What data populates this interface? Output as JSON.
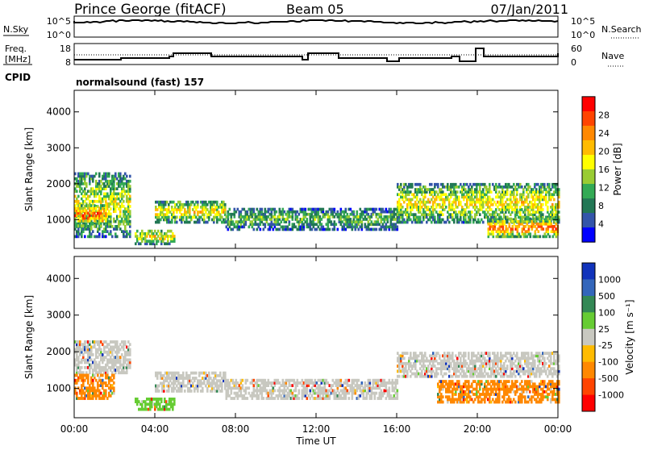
{
  "header": {
    "station": "Prince George (fitACF)",
    "beam": "Beam 05",
    "date": "07/Jan/2011"
  },
  "top_panels": {
    "nsky_label": "N.Sky",
    "nsky_ticks": [
      "10^5",
      "10^0"
    ],
    "nsearch_label": "N.Search",
    "nsearch_ticks": [
      "10^5",
      "10^0"
    ],
    "freq_label": "Freq.",
    "freq_unit": "[MHz]",
    "freq_ticks": [
      "18",
      "8"
    ],
    "nave_label": "Nave",
    "nave_ticks": [
      "60",
      "0"
    ],
    "cpid_label": "CPID",
    "cpid_value": "normalsound (fast) 157"
  },
  "chart_data": [
    {
      "type": "heatmap",
      "name": "power",
      "ylabel": "Slant Range [km]",
      "ylim": [
        200,
        4600
      ],
      "yticks": [
        "4000",
        "3000",
        "2000",
        "1000"
      ],
      "xlim": [
        0,
        24
      ],
      "colorbar": {
        "label": "Power [dB]",
        "ticks": [
          "28",
          "24",
          "20",
          "16",
          "12",
          "8",
          "4"
        ],
        "colors": [
          "#ff0000",
          "#ff4400",
          "#ff8800",
          "#ffbb00",
          "#ffff00",
          "#99cc33",
          "#33aa55",
          "#227755",
          "#3355aa",
          "#0000ff"
        ]
      },
      "regions": [
        {
          "t": [
            0.0,
            2.8
          ],
          "r": [
            500,
            2300
          ],
          "level": 0.55
        },
        {
          "t": [
            0.0,
            1.6
          ],
          "r": [
            800,
            1400
          ],
          "level": 0.85
        },
        {
          "t": [
            3.0,
            5.0
          ],
          "r": [
            300,
            700
          ],
          "level": 0.6
        },
        {
          "t": [
            4.0,
            7.5
          ],
          "r": [
            900,
            1500
          ],
          "level": 0.6
        },
        {
          "t": [
            7.5,
            16.0
          ],
          "r": [
            700,
            1300
          ],
          "level": 0.4
        },
        {
          "t": [
            16.0,
            24.0
          ],
          "r": [
            900,
            2000
          ],
          "level": 0.6
        },
        {
          "t": [
            20.5,
            24.0
          ],
          "r": [
            500,
            1000
          ],
          "level": 0.85
        }
      ]
    },
    {
      "type": "heatmap",
      "name": "velocity",
      "ylabel": "Slant Range [km]",
      "ylim": [
        200,
        4600
      ],
      "yticks": [
        "4000",
        "3000",
        "2000",
        "1000"
      ],
      "xlabel": "Time UT",
      "xlim": [
        0,
        24
      ],
      "xticks": [
        "00:00",
        "04:00",
        "08:00",
        "12:00",
        "16:00",
        "20:00",
        "00:00"
      ],
      "colorbar": {
        "label": "Velocity [m s⁻¹]",
        "ticks": [
          "1000",
          "500",
          "100",
          "25",
          "-25",
          "-100",
          "-500",
          "-1000"
        ],
        "colors": [
          "#1133bb",
          "#3366bb",
          "#338855",
          "#66cc33",
          "#c8c8c0",
          "#ffbb00",
          "#ff8800",
          "#ff4400",
          "#ff0000"
        ]
      },
      "regions": [
        {
          "t": [
            0.0,
            2.8
          ],
          "r": [
            1400,
            2300
          ],
          "color": "#c8c8c0"
        },
        {
          "t": [
            0.0,
            2.0
          ],
          "r": [
            700,
            1400
          ],
          "color": "#ff8800"
        },
        {
          "t": [
            3.0,
            5.0
          ],
          "r": [
            400,
            700
          ],
          "color": "#66cc33"
        },
        {
          "t": [
            4.0,
            7.5
          ],
          "r": [
            900,
            1400
          ],
          "color": "#c8c8c0"
        },
        {
          "t": [
            7.5,
            16.0
          ],
          "r": [
            700,
            1200
          ],
          "color": "#c8c8c0"
        },
        {
          "t": [
            16.0,
            24.0
          ],
          "r": [
            1300,
            2000
          ],
          "color": "#c8c8c0"
        },
        {
          "t": [
            18.0,
            24.0
          ],
          "r": [
            600,
            1200
          ],
          "color": "#ff8800"
        }
      ]
    }
  ]
}
